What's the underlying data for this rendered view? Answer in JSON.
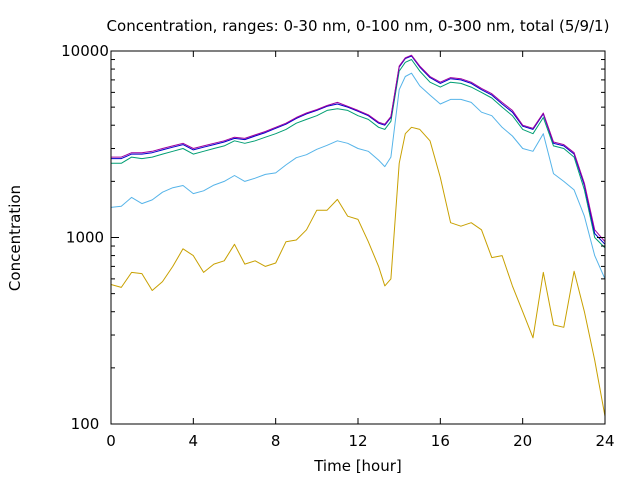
{
  "chart_data": {
    "type": "line",
    "title": "Concentration, ranges: 0-30 nm, 0-100 nm, 0-300 nm, total (5/9/1)",
    "xlabel": "Time [hour]",
    "ylabel": "Concentration",
    "xlim": [
      0,
      24
    ],
    "ylim": [
      100,
      10000
    ],
    "yscale": "log",
    "grid": false,
    "xticks": [
      "0",
      "4",
      "8",
      "12",
      "16",
      "20",
      "24"
    ],
    "yticks": [
      "100",
      "1000",
      "10000"
    ],
    "ytick_values": [
      100,
      1000,
      10000
    ],
    "x": [
      0,
      0.5,
      1,
      1.5,
      2,
      2.5,
      3,
      3.5,
      4,
      4.5,
      5,
      5.5,
      6,
      6.5,
      7,
      7.5,
      8,
      8.5,
      9,
      9.5,
      10,
      10.5,
      11,
      11.5,
      12,
      12.5,
      13,
      13.3,
      13.6,
      14,
      14.3,
      14.6,
      15,
      15.5,
      16,
      16.5,
      17,
      17.5,
      18,
      18.5,
      19,
      19.5,
      20,
      20.5,
      21,
      21.5,
      22,
      22.5,
      23,
      23.5,
      24
    ],
    "series": [
      {
        "color": "#c8a000",
        "values": [
          560,
          540,
          650,
          640,
          520,
          580,
          700,
          870,
          800,
          650,
          720,
          750,
          920,
          720,
          750,
          700,
          730,
          950,
          970,
          1100,
          1400,
          1400,
          1600,
          1300,
          1250,
          950,
          700,
          550,
          600,
          2500,
          3600,
          3900,
          3800,
          3300,
          2100,
          1200,
          1150,
          1200,
          1100,
          780,
          800,
          550,
          400,
          290,
          650,
          340,
          330,
          660,
          400,
          220,
          110
        ]
      },
      {
        "color": "#56b4e9",
        "values": [
          1450,
          1470,
          1640,
          1520,
          1590,
          1750,
          1850,
          1900,
          1720,
          1780,
          1910,
          2000,
          2150,
          2000,
          2080,
          2180,
          2220,
          2450,
          2680,
          2780,
          2970,
          3120,
          3300,
          3200,
          3000,
          2900,
          2600,
          2400,
          2700,
          6200,
          7300,
          7600,
          6500,
          5800,
          5200,
          5500,
          5500,
          5300,
          4700,
          4500,
          3900,
          3500,
          3000,
          2900,
          3600,
          2200,
          2000,
          1800,
          1300,
          800,
          600
        ]
      },
      {
        "color": "#009e73",
        "values": [
          2500,
          2500,
          2700,
          2650,
          2700,
          2800,
          2900,
          3000,
          2800,
          2900,
          3000,
          3100,
          3300,
          3200,
          3300,
          3450,
          3600,
          3800,
          4100,
          4300,
          4500,
          4800,
          4900,
          4800,
          4500,
          4300,
          3900,
          3800,
          4200,
          7800,
          8700,
          9000,
          7800,
          6800,
          6400,
          6800,
          6700,
          6400,
          6000,
          5600,
          5000,
          4500,
          3800,
          3600,
          4400,
          3100,
          3000,
          2700,
          1800,
          1000,
          880
        ]
      },
      {
        "color": "#0000cc",
        "values": [
          2650,
          2650,
          2800,
          2800,
          2850,
          2950,
          3050,
          3150,
          2950,
          3050,
          3150,
          3250,
          3400,
          3350,
          3500,
          3650,
          3850,
          4050,
          4350,
          4600,
          4800,
          5050,
          5200,
          5000,
          4750,
          4500,
          4100,
          4000,
          4400,
          8200,
          9100,
          9400,
          8200,
          7200,
          6700,
          7100,
          7000,
          6700,
          6200,
          5800,
          5200,
          4700,
          3950,
          3800,
          4600,
          3200,
          3100,
          2800,
          1900,
          1050,
          920
        ]
      },
      {
        "color": "#a000a0",
        "values": [
          2700,
          2700,
          2850,
          2850,
          2900,
          3000,
          3100,
          3200,
          3000,
          3100,
          3200,
          3300,
          3450,
          3400,
          3550,
          3700,
          3900,
          4100,
          4400,
          4650,
          4850,
          5100,
          5300,
          5050,
          4800,
          4550,
          4150,
          4050,
          4450,
          8300,
          9200,
          9500,
          8300,
          7300,
          6800,
          7200,
          7100,
          6800,
          6300,
          5900,
          5300,
          4800,
          4000,
          3850,
          4650,
          3250,
          3150,
          2850,
          1950,
          1100,
          950
        ]
      }
    ]
  }
}
